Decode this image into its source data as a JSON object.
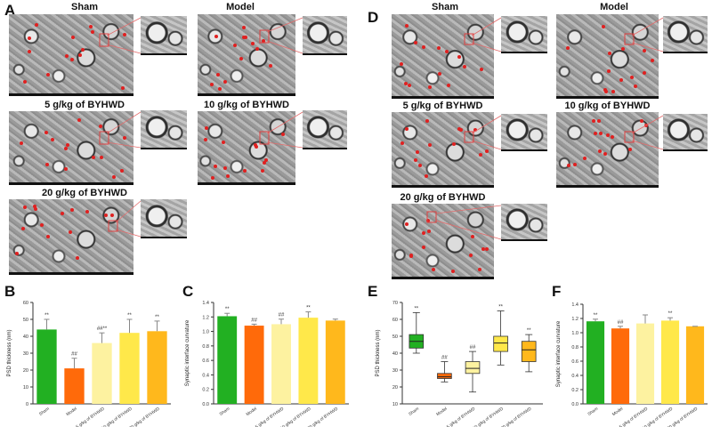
{
  "panel_letters": {
    "a": "A",
    "b": "B",
    "c": "C",
    "d": "D",
    "e": "E",
    "f": "F"
  },
  "micrograph_titles": {
    "a_sham": "Sham",
    "a_model": "Model",
    "a_5": "5 g/kg of BYHWD",
    "a_10": "10 g/kg of BYHWD",
    "a_20": "20 g/kg of BYHWD",
    "d_sham": "Sham",
    "d_model": "Model",
    "d_5": "5 g/kg of BYHWD",
    "d_10": "10 g/kg of BYHWD",
    "d_20": "20 g/kg of BYHWD"
  },
  "colors": {
    "sham": "#22b022",
    "model": "#ff6a0a",
    "g5": "#fdf2a0",
    "g10": "#ffe84a",
    "g20": "#ffb81c"
  },
  "chart_data": [
    {
      "id": "B",
      "type": "bar",
      "ylabel": "PSD thickness (nm)",
      "ylim": [
        0,
        60
      ],
      "yticks": [
        0,
        10,
        20,
        30,
        40,
        50,
        60
      ],
      "categories": [
        "Sham",
        "Model",
        "5 g/kg of BYHWD",
        "10 g/kg of BYHWD",
        "20 g/kg of BYHWD"
      ],
      "values": [
        44,
        21,
        36,
        42,
        43
      ],
      "errors": [
        6,
        6,
        6,
        8,
        6
      ],
      "annotations": [
        "**",
        "##",
        "##**",
        "**",
        "**"
      ]
    },
    {
      "id": "C",
      "type": "bar",
      "ylabel": "Synaptic interface curvature",
      "ylim": [
        0.0,
        1.4
      ],
      "yticks": [
        0.0,
        0.2,
        0.4,
        0.6,
        0.8,
        1.0,
        1.2,
        1.4
      ],
      "categories": [
        "Sham",
        "Model",
        "5 g/kg of BYHWD",
        "10 g/kg of BYHWD",
        "20 g/kg of BYHWD"
      ],
      "values": [
        1.21,
        1.08,
        1.1,
        1.19,
        1.15
      ],
      "errors": [
        0.04,
        0.02,
        0.07,
        0.08,
        0.02
      ],
      "annotations": [
        "**",
        "##",
        "##",
        "**",
        ""
      ]
    },
    {
      "id": "E",
      "type": "box",
      "ylabel": "PSD thickness (nm)",
      "ylim": [
        10,
        70
      ],
      "yticks": [
        10,
        20,
        30,
        40,
        50,
        60,
        70
      ],
      "categories": [
        "Sham",
        "Model",
        "5 g/kg of BYHWD",
        "10 g/kg of BYHWD",
        "20 g/kg of BYHWD"
      ],
      "boxes": [
        {
          "min": 40,
          "q1": 43,
          "median": 47,
          "q3": 51,
          "max": 64
        },
        {
          "min": 23,
          "q1": 25,
          "median": 26,
          "q3": 28,
          "max": 35
        },
        {
          "min": 17,
          "q1": 28,
          "median": 31,
          "q3": 35,
          "max": 41
        },
        {
          "min": 33,
          "q1": 41,
          "median": 46,
          "q3": 50,
          "max": 65
        },
        {
          "min": 29,
          "q1": 35,
          "median": 42,
          "q3": 47,
          "max": 51
        }
      ],
      "annotations": [
        "**",
        "##",
        "##",
        "**",
        "**"
      ]
    },
    {
      "id": "F",
      "type": "bar",
      "ylabel": "Synaptic interface curvature",
      "ylim": [
        0.0,
        1.4
      ],
      "yticks": [
        0.0,
        0.2,
        0.4,
        0.6,
        0.8,
        1.0,
        1.2,
        1.4
      ],
      "categories": [
        "Sham",
        "Model",
        "5 g/kg of BYHWD",
        "10 g/kg of BYHWD",
        "20 g/kg of BYHWD"
      ],
      "values": [
        1.16,
        1.06,
        1.13,
        1.17,
        1.09
      ],
      "errors": [
        0.03,
        0.03,
        0.12,
        0.04,
        0.0
      ],
      "annotations": [
        "**",
        "##",
        "",
        "**",
        ""
      ]
    }
  ]
}
